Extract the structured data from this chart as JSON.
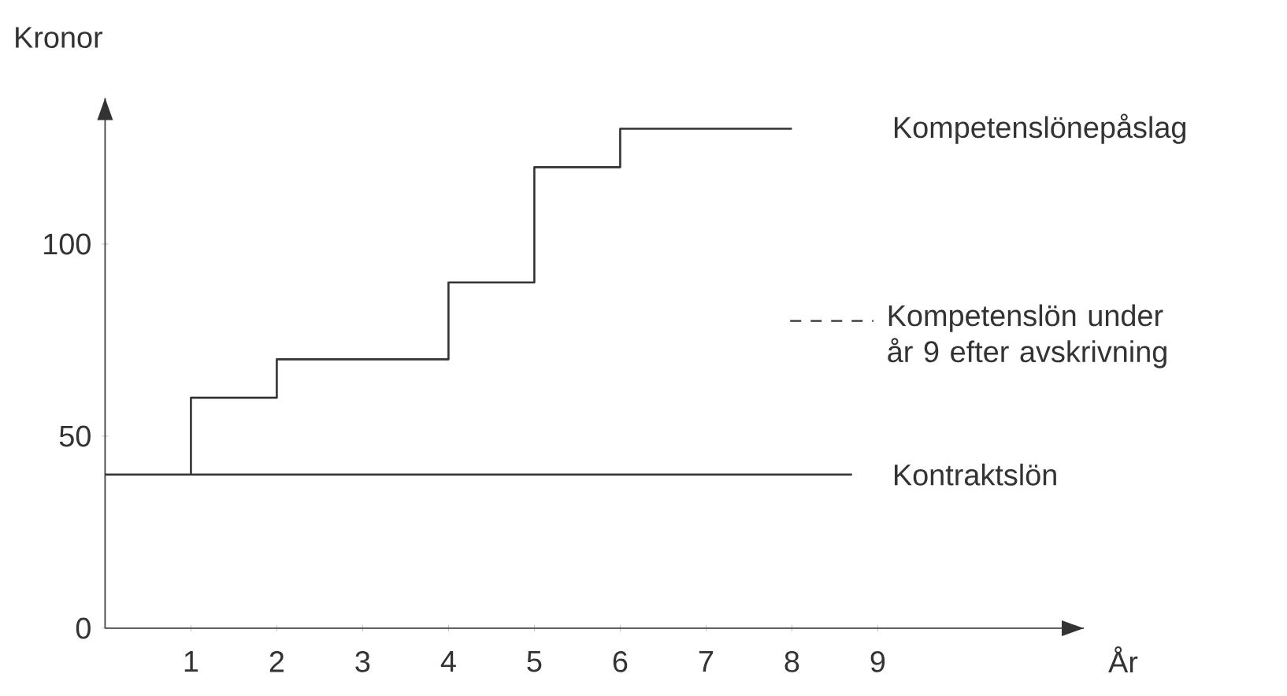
{
  "chart_data": {
    "type": "step",
    "ylabel": "Kronor",
    "xlabel": "År",
    "xlim": [
      0,
      11.4
    ],
    "ylim": [
      0,
      138
    ],
    "xticks": [
      1,
      2,
      3,
      4,
      5,
      6,
      7,
      8,
      9
    ],
    "yticks": [
      0,
      50,
      100
    ],
    "grid": false,
    "legend": "right",
    "line_style": "solid",
    "marker": "none",
    "series": [
      {
        "name": "Kompetenslönepåslag",
        "color": "#333333",
        "x": [
          1,
          1,
          2,
          4,
          5,
          6,
          8
        ],
        "values": [
          40,
          60,
          70,
          90,
          120,
          130,
          130
        ]
      },
      {
        "name": "Kontraktslön",
        "color": "#333333",
        "x": [
          0,
          8.7
        ],
        "values": [
          40,
          40
        ]
      },
      {
        "name": "Kompetenslön under år 9 efter avskrivning",
        "color": "#333333",
        "line_style": "dashed"
      }
    ]
  }
}
